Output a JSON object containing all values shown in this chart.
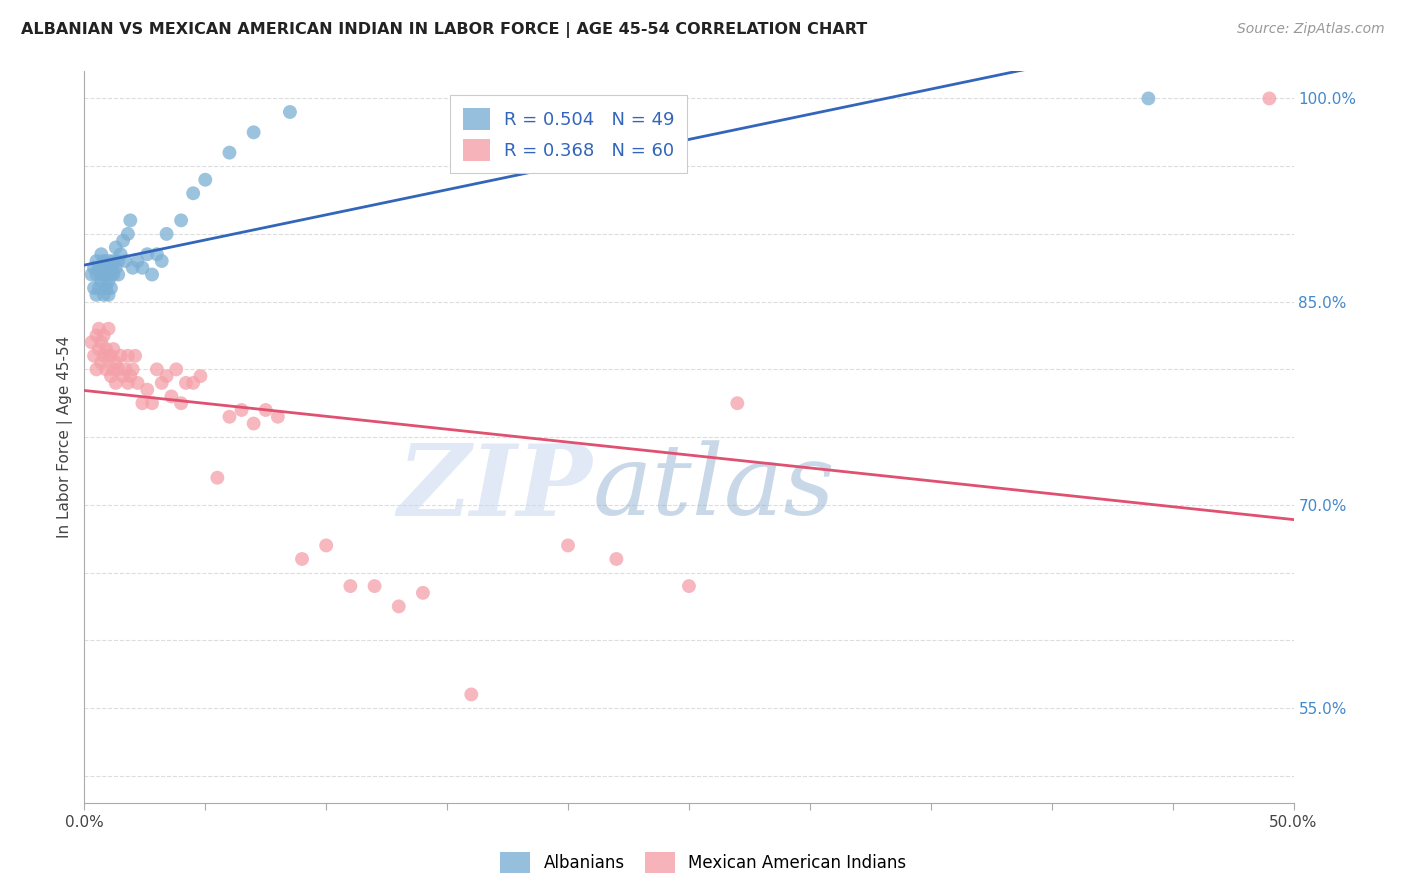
{
  "title": "ALBANIAN VS MEXICAN AMERICAN INDIAN IN LABOR FORCE | AGE 45-54 CORRELATION CHART",
  "source": "Source: ZipAtlas.com",
  "ylabel": "In Labor Force | Age 45-54",
  "xlim": [
    0.0,
    0.5
  ],
  "ylim": [
    0.48,
    1.02
  ],
  "x_ticks": [
    0.0,
    0.05,
    0.1,
    0.15,
    0.2,
    0.25,
    0.3,
    0.35,
    0.4,
    0.45,
    0.5
  ],
  "x_tick_labels": [
    "0.0%",
    "",
    "",
    "",
    "",
    "",
    "",
    "",
    "",
    "",
    "50.0%"
  ],
  "y_ticks": [
    0.5,
    0.55,
    0.6,
    0.65,
    0.7,
    0.75,
    0.8,
    0.85,
    0.9,
    0.95,
    1.0
  ],
  "y_tick_labels": [
    "",
    "55.0%",
    "",
    "",
    "70.0%",
    "",
    "",
    "85.0%",
    "",
    "",
    "100.0%"
  ],
  "albanian_color": "#7BAFD4",
  "mexican_color": "#F4A0A8",
  "albanian_line_color": "#3366BB",
  "mexican_line_color": "#E05070",
  "R_albanian": 0.504,
  "N_albanian": 49,
  "R_mexican": 0.368,
  "N_mexican": 60,
  "albanian_x": [
    0.003,
    0.004,
    0.004,
    0.005,
    0.005,
    0.005,
    0.006,
    0.006,
    0.007,
    0.007,
    0.007,
    0.008,
    0.008,
    0.008,
    0.009,
    0.009,
    0.009,
    0.01,
    0.01,
    0.01,
    0.011,
    0.011,
    0.011,
    0.012,
    0.012,
    0.013,
    0.013,
    0.014,
    0.014,
    0.015,
    0.016,
    0.017,
    0.018,
    0.019,
    0.02,
    0.022,
    0.024,
    0.026,
    0.028,
    0.03,
    0.032,
    0.034,
    0.04,
    0.045,
    0.05,
    0.06,
    0.07,
    0.085,
    0.44
  ],
  "albanian_y": [
    0.87,
    0.86,
    0.875,
    0.855,
    0.87,
    0.88,
    0.86,
    0.875,
    0.87,
    0.865,
    0.885,
    0.855,
    0.87,
    0.88,
    0.86,
    0.875,
    0.87,
    0.865,
    0.855,
    0.88,
    0.87,
    0.875,
    0.86,
    0.88,
    0.87,
    0.875,
    0.89,
    0.88,
    0.87,
    0.885,
    0.895,
    0.88,
    0.9,
    0.91,
    0.875,
    0.88,
    0.875,
    0.885,
    0.87,
    0.885,
    0.88,
    0.9,
    0.91,
    0.93,
    0.94,
    0.96,
    0.975,
    0.99,
    1.0
  ],
  "mexican_x": [
    0.003,
    0.004,
    0.005,
    0.005,
    0.006,
    0.006,
    0.007,
    0.007,
    0.008,
    0.008,
    0.009,
    0.009,
    0.01,
    0.01,
    0.011,
    0.011,
    0.012,
    0.012,
    0.013,
    0.013,
    0.014,
    0.015,
    0.016,
    0.017,
    0.018,
    0.018,
    0.019,
    0.02,
    0.021,
    0.022,
    0.024,
    0.026,
    0.028,
    0.03,
    0.032,
    0.034,
    0.036,
    0.038,
    0.04,
    0.042,
    0.045,
    0.048,
    0.055,
    0.06,
    0.065,
    0.07,
    0.075,
    0.08,
    0.09,
    0.1,
    0.11,
    0.12,
    0.13,
    0.14,
    0.16,
    0.2,
    0.22,
    0.25,
    0.27,
    0.49
  ],
  "mexican_y": [
    0.82,
    0.81,
    0.825,
    0.8,
    0.815,
    0.83,
    0.805,
    0.82,
    0.81,
    0.825,
    0.8,
    0.815,
    0.83,
    0.81,
    0.795,
    0.81,
    0.8,
    0.815,
    0.79,
    0.805,
    0.8,
    0.81,
    0.795,
    0.8,
    0.79,
    0.81,
    0.795,
    0.8,
    0.81,
    0.79,
    0.775,
    0.785,
    0.775,
    0.8,
    0.79,
    0.795,
    0.78,
    0.8,
    0.775,
    0.79,
    0.79,
    0.795,
    0.72,
    0.765,
    0.77,
    0.76,
    0.77,
    0.765,
    0.66,
    0.67,
    0.64,
    0.64,
    0.625,
    0.635,
    0.56,
    0.67,
    0.66,
    0.64,
    0.775,
    1.0
  ],
  "watermark_zip": "ZIP",
  "watermark_atlas": "atlas",
  "background_color": "#FFFFFF",
  "grid_color": "#DDDDDD"
}
